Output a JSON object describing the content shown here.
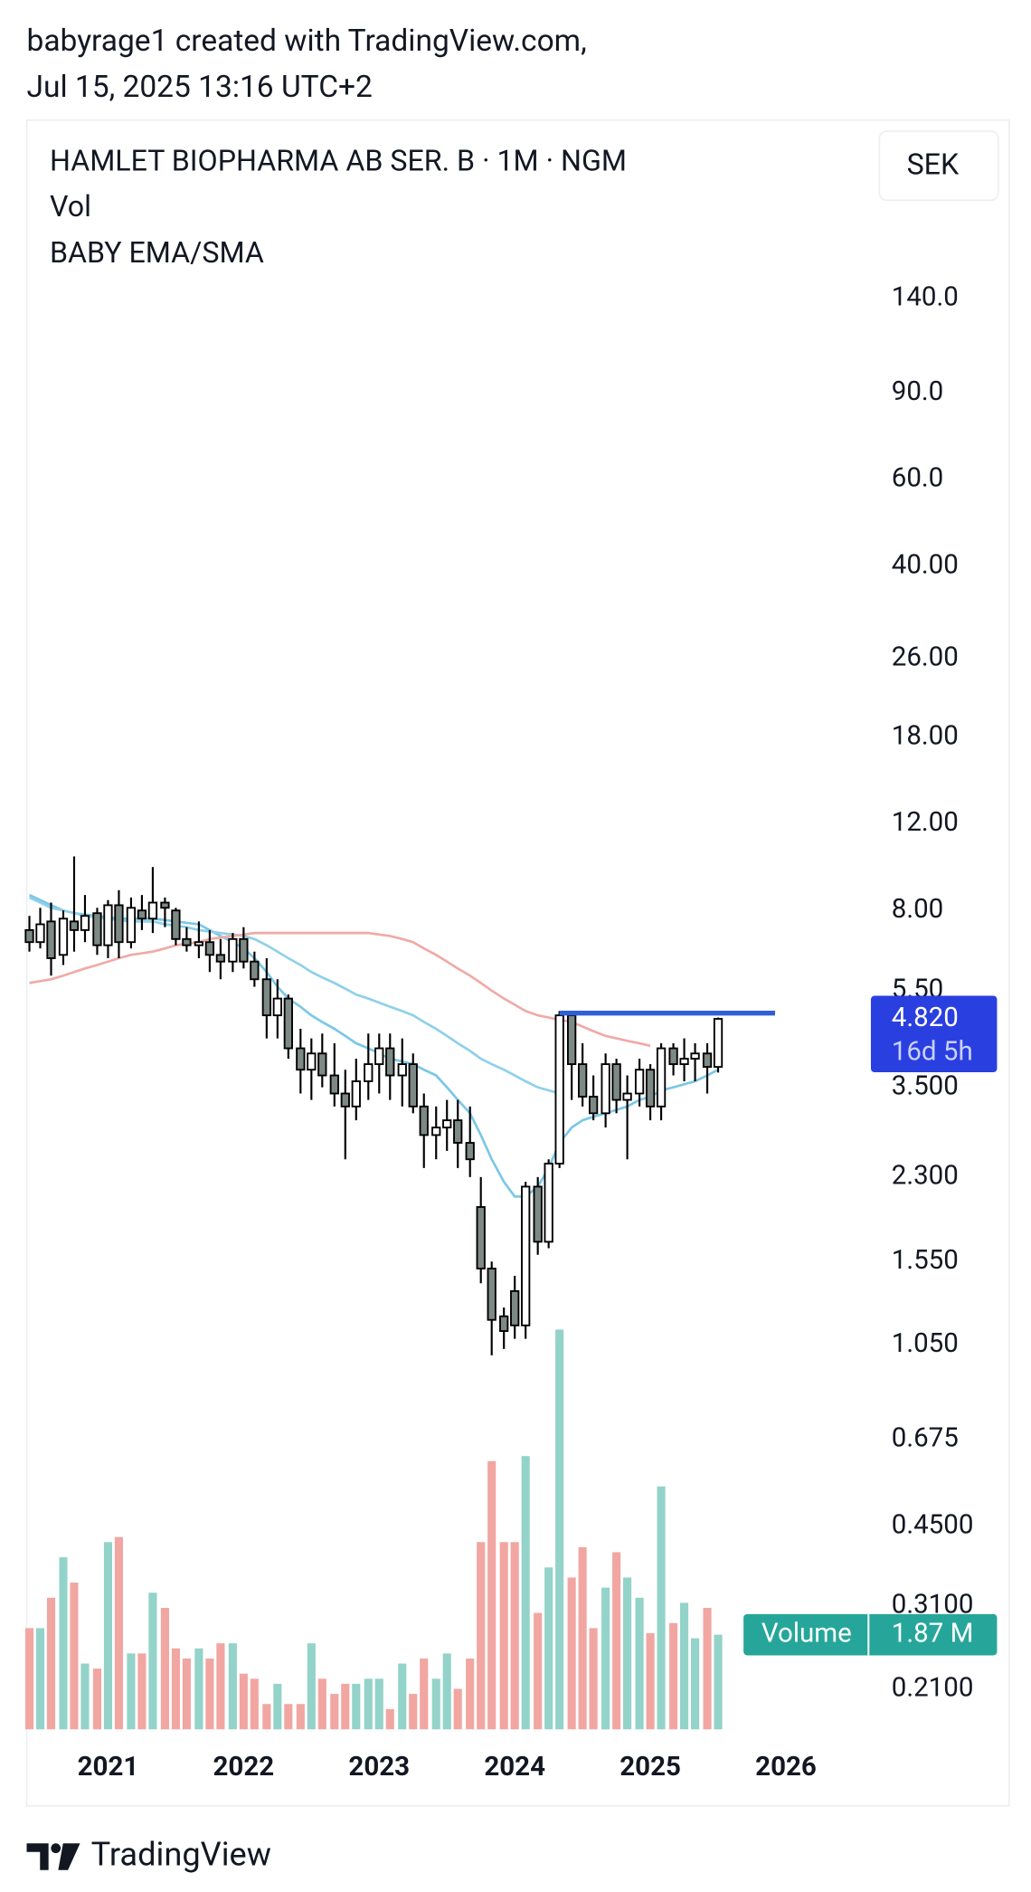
{
  "header": {
    "author_line": "babyrage1 created with TradingView.com,",
    "date_line": "Jul 15, 2025 13:16 UTC+2"
  },
  "footer": {
    "brand": "TradingView"
  },
  "chart_data": {
    "type": "candlestick",
    "title": "HAMLET BIOPHARMA AB SER. B · 1M · NGM",
    "legend_lines": [
      "Vol",
      "BABY EMA/SMA"
    ],
    "currency": "SEK",
    "log_y": true,
    "grid": false,
    "xlim": [
      2020.4,
      2026.6
    ],
    "xticks": [
      2021,
      2022,
      2023,
      2024,
      2025,
      2026
    ],
    "ylim": [
      0.174,
      320
    ],
    "yticks": [
      {
        "value": 140,
        "label": "140.0"
      },
      {
        "value": 90,
        "label": "90.0"
      },
      {
        "value": 60,
        "label": "60.0"
      },
      {
        "value": 40,
        "label": "40.00"
      },
      {
        "value": 26,
        "label": "26.00"
      },
      {
        "value": 18,
        "label": "18.00"
      },
      {
        "value": 12,
        "label": "12.00"
      },
      {
        "value": 8,
        "label": "8.00"
      },
      {
        "value": 5.5,
        "label": "5.50"
      },
      {
        "value": 3.5,
        "label": "3.500"
      },
      {
        "value": 2.3,
        "label": "2.300"
      },
      {
        "value": 1.55,
        "label": "1.550"
      },
      {
        "value": 1.05,
        "label": "1.050"
      },
      0.675,
      {
        "value": 0.45,
        "label": "0.4500"
      },
      {
        "value": 0.31,
        "label": "0.3100"
      },
      {
        "value": 0.21,
        "label": "0.2100"
      }
    ],
    "x": [
      2020.42,
      2020.5,
      2020.58,
      2020.67,
      2020.75,
      2020.83,
      2020.92,
      2021.0,
      2021.08,
      2021.17,
      2021.25,
      2021.33,
      2021.42,
      2021.5,
      2021.58,
      2021.67,
      2021.75,
      2021.83,
      2021.92,
      2022.0,
      2022.08,
      2022.17,
      2022.25,
      2022.33,
      2022.42,
      2022.5,
      2022.58,
      2022.67,
      2022.75,
      2022.83,
      2022.92,
      2023.0,
      2023.08,
      2023.17,
      2023.25,
      2023.33,
      2023.42,
      2023.5,
      2023.58,
      2023.67,
      2023.75,
      2023.83,
      2023.92,
      2024.0,
      2024.08,
      2024.17,
      2024.25,
      2024.33,
      2024.42,
      2024.5,
      2024.58,
      2024.67,
      2024.75,
      2024.83,
      2024.92,
      2025.0,
      2025.08,
      2025.17,
      2025.25,
      2025.33,
      2025.42,
      2025.5
    ],
    "open": [
      7.3,
      6.9,
      7.6,
      6.5,
      7.6,
      7.3,
      7.9,
      6.8,
      8.2,
      6.9,
      8.0,
      7.7,
      8.3,
      8.0,
      7.0,
      6.8,
      6.9,
      6.5,
      6.3,
      7.0,
      6.3,
      5.8,
      4.9,
      5.3,
      4.2,
      3.8,
      4.1,
      3.7,
      3.4,
      3.2,
      3.6,
      3.9,
      4.2,
      3.7,
      3.9,
      3.2,
      2.8,
      2.9,
      3.0,
      2.7,
      2.0,
      1.5,
      1.2,
      1.35,
      1.15,
      2.2,
      1.7,
      2.45,
      4.9,
      3.9,
      3.35,
      3.1,
      3.9,
      3.3,
      3.4,
      3.8,
      3.2,
      4.2,
      3.9,
      4.0,
      4.1,
      3.85
    ],
    "high": [
      7.8,
      8.1,
      8.3,
      8.0,
      10.3,
      8.6,
      8.1,
      8.4,
      8.8,
      8.5,
      8.6,
      9.8,
      8.5,
      8.1,
      7.4,
      7.6,
      7.3,
      7.0,
      7.2,
      7.4,
      6.6,
      6.4,
      5.8,
      5.4,
      4.6,
      4.4,
      4.5,
      4.3,
      3.8,
      4.0,
      4.5,
      4.5,
      4.5,
      4.4,
      4.1,
      3.4,
      3.2,
      3.3,
      3.3,
      3.2,
      2.3,
      1.55,
      1.25,
      1.45,
      2.25,
      2.3,
      2.5,
      5.0,
      5.0,
      4.3,
      3.7,
      4.1,
      4.0,
      3.7,
      4.0,
      3.9,
      4.3,
      4.3,
      4.4,
      4.3,
      4.3,
      4.85
    ],
    "low": [
      6.6,
      6.7,
      5.9,
      6.2,
      6.6,
      6.9,
      6.5,
      6.4,
      6.4,
      6.7,
      7.3,
      7.2,
      7.4,
      6.8,
      6.6,
      6.4,
      6.0,
      5.8,
      6.0,
      6.1,
      5.6,
      4.4,
      4.4,
      4.0,
      3.4,
      3.3,
      3.5,
      3.2,
      2.5,
      3.0,
      3.3,
      3.4,
      3.3,
      3.2,
      3.1,
      2.4,
      2.5,
      2.6,
      2.4,
      2.3,
      1.4,
      1.0,
      1.03,
      1.08,
      1.08,
      1.6,
      1.65,
      2.4,
      3.3,
      3.2,
      3.0,
      2.9,
      3.1,
      2.5,
      3.2,
      3.0,
      3.0,
      3.7,
      3.6,
      3.6,
      3.4,
      3.75
    ],
    "close": [
      6.9,
      7.5,
      6.4,
      7.7,
      7.3,
      7.8,
      6.8,
      8.2,
      6.9,
      8.1,
      7.7,
      8.3,
      8.1,
      7.0,
      6.8,
      6.9,
      6.5,
      6.3,
      7.0,
      6.3,
      5.8,
      4.9,
      5.3,
      4.2,
      3.8,
      4.1,
      3.7,
      3.4,
      3.2,
      3.6,
      3.9,
      4.2,
      3.7,
      3.9,
      3.2,
      2.8,
      2.9,
      3.0,
      2.7,
      2.5,
      1.5,
      1.18,
      1.12,
      1.15,
      2.2,
      1.7,
      2.45,
      4.9,
      3.9,
      3.35,
      3.1,
      3.9,
      3.3,
      3.4,
      3.8,
      3.2,
      4.2,
      3.9,
      4.0,
      4.1,
      3.85,
      4.82
    ],
    "up_color": "#ffffff",
    "down_color": "#7d8984",
    "wick_color": "#000000",
    "close_label": "4.820",
    "countdown": "16d 5h",
    "label_color": "#2a3fe0",
    "lines": [
      {
        "color": "#7cc7e6",
        "values": [
          8.6,
          8.4,
          8.2,
          8.0,
          7.9,
          7.85,
          7.8,
          7.75,
          7.7,
          7.7,
          7.7,
          7.7,
          7.65,
          7.6,
          7.55,
          7.5,
          7.3,
          7.1,
          6.9,
          6.7,
          6.4,
          6.0,
          5.6,
          5.3,
          5.1,
          4.9,
          4.75,
          4.6,
          4.45,
          4.3,
          4.2,
          4.1,
          4.0,
          3.95,
          3.9,
          3.8,
          3.7,
          3.5,
          3.3,
          3.1,
          2.8,
          2.5,
          2.25,
          2.1,
          2.1,
          2.2,
          2.4,
          2.7,
          2.9,
          3.0,
          3.05,
          3.1,
          3.15,
          3.2,
          3.3,
          3.35,
          3.45,
          3.5,
          3.55,
          3.6,
          3.7,
          3.8
        ]
      },
      {
        "color": "#8fd0ea",
        "values": [
          8.5,
          8.3,
          8.1,
          8.0,
          7.9,
          7.8,
          7.75,
          7.7,
          7.65,
          7.6,
          7.6,
          7.6,
          7.5,
          7.45,
          7.4,
          7.3,
          7.25,
          7.2,
          7.15,
          7.1,
          7.0,
          6.8,
          6.6,
          6.4,
          6.2,
          6.0,
          5.85,
          5.7,
          5.55,
          5.4,
          5.3,
          5.2,
          5.1,
          5.0,
          4.9,
          4.75,
          4.6,
          4.45,
          4.3,
          4.15,
          4.0,
          3.9,
          3.8,
          3.7,
          3.6,
          3.5,
          3.45,
          3.4,
          null,
          null,
          null,
          null,
          null,
          null,
          null,
          null,
          null,
          null,
          null,
          null,
          null,
          null
        ]
      },
      {
        "color": "#f0aaa6",
        "values": [
          5.7,
          5.75,
          5.8,
          5.9,
          6.0,
          6.1,
          6.2,
          6.3,
          6.4,
          6.5,
          6.55,
          6.6,
          6.7,
          6.8,
          6.85,
          6.9,
          7.0,
          7.05,
          7.1,
          7.15,
          7.2,
          7.2,
          7.2,
          7.2,
          7.2,
          7.2,
          7.2,
          7.2,
          7.2,
          7.2,
          7.2,
          7.15,
          7.1,
          7.0,
          6.9,
          6.7,
          6.5,
          6.3,
          6.1,
          5.9,
          5.7,
          5.5,
          5.3,
          5.15,
          5.0,
          4.9,
          4.85,
          4.8,
          4.75,
          4.65,
          4.55,
          4.45,
          4.4,
          4.35,
          4.3,
          4.25,
          null,
          null,
          null,
          null,
          null,
          null
        ]
      }
    ],
    "hline": {
      "value": 4.95,
      "x": [
        2024.33,
        2025.92
      ],
      "color": "#2f5fd8"
    },
    "volume": {
      "name": "Volume",
      "last_label": "1.87 M",
      "ylim": [
        0,
        10000000
      ],
      "up_color": "#93d3c9",
      "down_color": "#f1a6a2",
      "label_color": "#26a69a",
      "values": [
        2000000,
        2000000,
        2600000,
        3400000,
        2900000,
        1300000,
        1200000,
        3700000,
        3800000,
        1500000,
        1500000,
        2700000,
        2400000,
        1600000,
        1400000,
        1600000,
        1400000,
        1700000,
        1700000,
        1100000,
        1000000,
        500000,
        900000,
        500000,
        500000,
        1700000,
        1000000,
        700000,
        900000,
        900000,
        1000000,
        1000000,
        400000,
        1300000,
        700000,
        1400000,
        1000000,
        1500000,
        800000,
        1400000,
        3700000,
        5300000,
        3700000,
        3700000,
        5400000,
        2300000,
        3200000,
        7900000,
        3000000,
        3600000,
        2000000,
        2800000,
        3500000,
        3000000,
        2600000,
        1900000,
        4800000,
        2100000,
        2500000,
        1800000,
        2400000,
        1870000
      ]
    }
  }
}
